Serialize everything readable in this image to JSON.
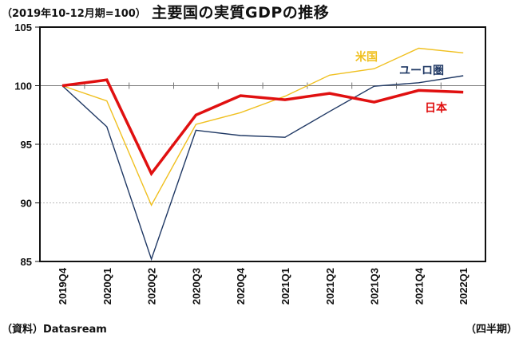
{
  "header": {
    "unit_note": "（2019年10-12月期=100）",
    "title": "主要国の実質GDPの推移"
  },
  "footer": {
    "source": "（資料）Datasream",
    "x_unit": "（四半期）"
  },
  "chart_data": {
    "type": "line",
    "title": "主要国の実質GDPの推移",
    "subtitle": "（2019年10-12月期=100）",
    "xlabel": "（四半期）",
    "ylabel": "",
    "ylim": [
      85,
      105
    ],
    "yticks": [
      85,
      90,
      95,
      100,
      105
    ],
    "grid": "dotted horizontal at 90 and 95; solid baseline at 100",
    "legend": "inline labels near line ends (right)",
    "categories": [
      "2019Q4",
      "2020Q1",
      "2020Q2",
      "2020Q3",
      "2020Q4",
      "2021Q1",
      "2021Q2",
      "2021Q3",
      "2021Q4",
      "2022Q1"
    ],
    "series": [
      {
        "name": "米国",
        "color": "#f0c020",
        "width": "thin",
        "values": [
          100,
          98.7,
          89.8,
          96.7,
          97.7,
          99.1,
          100.9,
          101.45,
          103.2,
          102.8
        ]
      },
      {
        "name": "ユーロ圏",
        "color": "#1f3864",
        "width": "thin",
        "values": [
          100,
          96.5,
          85.2,
          96.2,
          95.75,
          95.6,
          97.8,
          99.95,
          100.25,
          100.85
        ]
      },
      {
        "name": "日本",
        "color": "#e01010",
        "width": "thick",
        "values": [
          100,
          100.5,
          92.5,
          97.5,
          99.15,
          98.8,
          99.35,
          98.6,
          99.6,
          99.45
        ]
      }
    ]
  }
}
